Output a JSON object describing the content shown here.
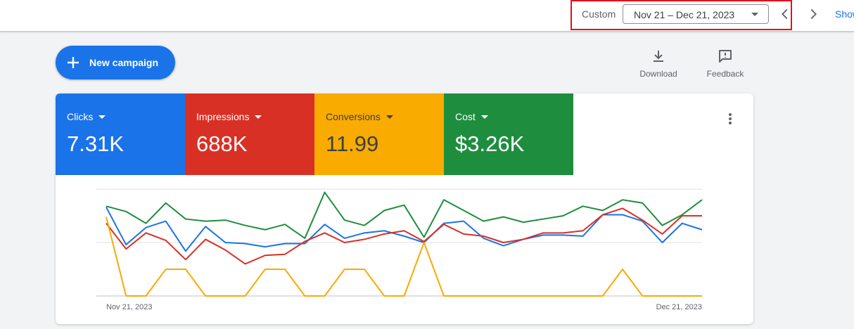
{
  "header": {
    "range_label": "Custom",
    "date_range": "Nov 21 – Dec 21, 2023",
    "show_link": "Show"
  },
  "actions": {
    "new_campaign": "New campaign",
    "download": "Download",
    "feedback": "Feedback"
  },
  "metrics": [
    {
      "name": "Clicks",
      "value": "7.31K",
      "color": "#1a73e8"
    },
    {
      "name": "Impressions",
      "value": "688K",
      "color": "#d93025"
    },
    {
      "name": "Conversions",
      "value": "11.99",
      "color": "#f9ab00"
    },
    {
      "name": "Cost",
      "value": "$3.26K",
      "color": "#1e8e3e"
    }
  ],
  "chart_data": {
    "type": "line",
    "x_start_label": "Nov 21, 2023",
    "x_end_label": "Dec 21, 2023",
    "x": [
      "Nov 21",
      "Nov 22",
      "Nov 23",
      "Nov 24",
      "Nov 25",
      "Nov 26",
      "Nov 27",
      "Nov 28",
      "Nov 29",
      "Nov 30",
      "Dec 1",
      "Dec 2",
      "Dec 3",
      "Dec 4",
      "Dec 5",
      "Dec 6",
      "Dec 7",
      "Dec 8",
      "Dec 9",
      "Dec 10",
      "Dec 11",
      "Dec 12",
      "Dec 13",
      "Dec 14",
      "Dec 15",
      "Dec 16",
      "Dec 17",
      "Dec 18",
      "Dec 19",
      "Dec 20",
      "Dec 21"
    ],
    "grid": true,
    "y_range": [
      0,
      100
    ],
    "series": [
      {
        "key": "clicks",
        "color": "#1a73e8",
        "values": [
          83,
          48,
          64,
          70,
          42,
          65,
          50,
          49,
          46,
          49,
          49,
          67,
          54,
          59,
          61,
          56,
          50,
          68,
          70,
          54,
          47,
          53,
          57,
          57,
          56,
          76,
          76,
          70,
          50,
          68,
          62
        ]
      },
      {
        "key": "impressions",
        "color": "#d93025",
        "values": [
          68,
          44,
          59,
          52,
          34,
          53,
          43,
          30,
          38,
          39,
          51,
          59,
          50,
          53,
          58,
          61,
          51,
          67,
          58,
          56,
          50,
          53,
          59,
          59,
          61,
          76,
          82,
          71,
          58,
          75,
          75
        ]
      },
      {
        "key": "conversions",
        "color": "#f9ab00",
        "values": [
          74,
          0,
          0,
          25,
          25,
          0,
          0,
          0,
          25,
          25,
          0,
          0,
          25,
          25,
          0,
          0,
          50,
          0,
          0,
          0,
          0,
          0,
          0,
          0,
          0,
          0,
          25,
          0,
          0,
          0,
          0
        ]
      },
      {
        "key": "cost",
        "color": "#1e8e3e",
        "values": [
          84,
          79,
          68,
          87,
          72,
          70,
          71,
          66,
          62,
          67,
          54,
          97,
          71,
          66,
          80,
          85,
          55,
          90,
          80,
          70,
          74,
          69,
          72,
          75,
          84,
          80,
          90,
          87,
          66,
          76,
          90
        ]
      }
    ]
  }
}
